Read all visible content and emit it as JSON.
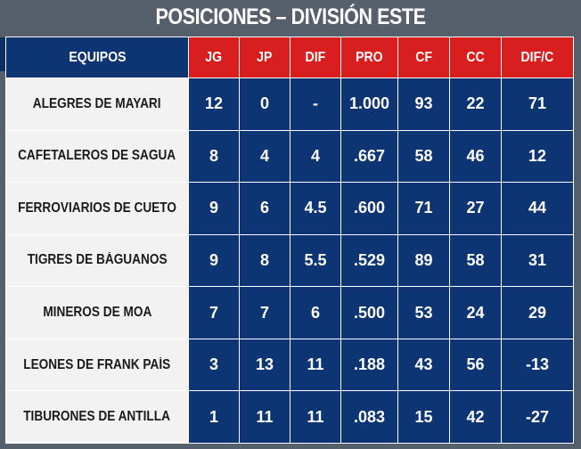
{
  "title": "POSICIONES – DIVISIÓN ESTE",
  "colors": {
    "header_red": "#d81e1e",
    "navy": "#0e3573",
    "team_bg": "#f2f2f2",
    "frame": "#56606d"
  },
  "columns": [
    "EQUIPOS",
    "JG",
    "JP",
    "DIF",
    "PRO",
    "CF",
    "CC",
    "DIF/C"
  ],
  "rows": [
    {
      "team": "ALEGRES DE MAYARI",
      "jg": "12",
      "jp": "0",
      "dif": "-",
      "pro": "1.000",
      "cf": "93",
      "cc": "22",
      "difc": "71"
    },
    {
      "team": "CAFETALEROS DE SAGUA",
      "jg": "8",
      "jp": "4",
      "dif": "4",
      "pro": ".667",
      "cf": "58",
      "cc": "46",
      "difc": "12"
    },
    {
      "team": "FERROVIARIOS DE CUETO",
      "jg": "9",
      "jp": "6",
      "dif": "4.5",
      "pro": ".600",
      "cf": "71",
      "cc": "27",
      "difc": "44"
    },
    {
      "team": "TIGRES DE BÁGUANOS",
      "jg": "9",
      "jp": "8",
      "dif": "5.5",
      "pro": ".529",
      "cf": "89",
      "cc": "58",
      "difc": "31"
    },
    {
      "team": "MINEROS DE MOA",
      "jg": "7",
      "jp": "7",
      "dif": "6",
      "pro": ".500",
      "cf": "53",
      "cc": "24",
      "difc": "29"
    },
    {
      "team": "LEONES DE FRANK PAÍS",
      "jg": "3",
      "jp": "13",
      "dif": "11",
      "pro": ".188",
      "cf": "43",
      "cc": "56",
      "difc": "-13"
    },
    {
      "team": "TIBURONES DE ANTILLA",
      "jg": "1",
      "jp": "11",
      "dif": "11",
      "pro": ".083",
      "cf": "15",
      "cc": "42",
      "difc": "-27"
    }
  ]
}
